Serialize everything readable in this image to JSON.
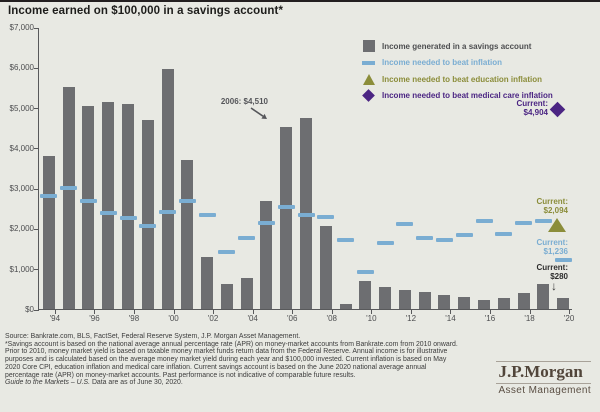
{
  "title": "Income earned on $100,000 in a savings account*",
  "colors": {
    "background": "#e8e9e3",
    "bar": "#6d6e71",
    "inflation": "#7aadd2",
    "education": "#8b8d3a",
    "medical": "#4b2583",
    "axis": "#58595b"
  },
  "legend": [
    {
      "label": "Income generated in a savings account",
      "marker": "square-icon",
      "color": "#6d6e71"
    },
    {
      "label": "Income needed to beat inflation",
      "marker": "dash-icon",
      "color": "#7aadd2"
    },
    {
      "label": "Income needed to beat education inflation",
      "marker": "triangle-icon",
      "color": "#8b8d3a"
    },
    {
      "label": "Income needed to beat medical care inflation",
      "marker": "diamond-icon",
      "color": "#4b2583"
    }
  ],
  "chart_data": {
    "type": "bar",
    "title": "Income earned on $100,000 in a savings account*",
    "x": [
      1994,
      1995,
      1996,
      1997,
      1998,
      1999,
      2000,
      2001,
      2002,
      2003,
      2004,
      2005,
      2006,
      2007,
      2008,
      2009,
      2010,
      2011,
      2012,
      2013,
      2014,
      2015,
      2016,
      2017,
      2018,
      2019,
      2020
    ],
    "x_tick_labels": [
      "'94",
      "'96",
      "'98",
      "'00",
      "'02",
      "'04",
      "'06",
      "'08",
      "'10",
      "'12",
      "'14",
      "'16",
      "'18",
      "'20"
    ],
    "ylim": [
      0,
      7000
    ],
    "y_tick_labels": [
      "$0",
      "$1,000",
      "$2,000",
      "$3,000",
      "$4,000",
      "$5,000",
      "$6,000",
      "$7,000"
    ],
    "grid": false,
    "legend_position": "top-right",
    "series": [
      {
        "name": "Income generated in a savings account",
        "style": "bar",
        "values": [
          3800,
          5500,
          5050,
          5150,
          5100,
          4700,
          5950,
          3700,
          1300,
          620,
          780,
          2670,
          4510,
          4750,
          2050,
          130,
          700,
          550,
          470,
          420,
          360,
          310,
          220,
          270,
          390,
          620,
          280
        ]
      },
      {
        "name": "Income needed to beat inflation",
        "style": "dash",
        "values": [
          2830,
          3030,
          2700,
          2400,
          2280,
          2080,
          2430,
          2700,
          2360,
          1450,
          1780,
          2160,
          2550,
          2360,
          2310,
          1740,
          950,
          1670,
          2130,
          1790,
          1750,
          1860,
          2210,
          1880,
          2160,
          2210,
          1236
        ]
      }
    ],
    "annotations": {
      "peak_2006": {
        "text": "2006: $4,510",
        "year": 2006,
        "value": 4510
      },
      "current_medical": {
        "label": "Current:",
        "value": "$4,904",
        "numeric": 4904
      },
      "current_education": {
        "label": "Current:",
        "value": "$2,094",
        "numeric": 2094
      },
      "current_inflation": {
        "label": "Current:",
        "value": "$1,236",
        "numeric": 1236
      },
      "current_savings": {
        "label": "Current:",
        "value": "$280",
        "numeric": 280
      }
    }
  },
  "footer": {
    "lines": [
      "Source: Bankrate.com, BLS, FactSet, Federal Reserve System, J.P. Morgan Asset Management.",
      "*Savings account is based on the national average annual percentage rate (APR) on money-market accounts from Bankrate.com from 2010 onward.",
      "Prior to 2010, money market yield is based on taxable money market funds return data from the Federal Reserve. Annual income is for illustrative",
      "purposes and is calculated based on the average money market yield during each year and $100,000 invested. Current inflation is based on May",
      "2020 Core CPI, education inflation and medical care inflation. Current savings account is based on the June 2020 national average annual",
      "percentage rate (APR) on money-market accounts. Past performance is not indicative of comparable future results."
    ],
    "gtm_italic": "Guide to the Markets – U.S.",
    "gtm_rest": " Data are as of June 30, 2020."
  },
  "logo": {
    "name": "J.P.Morgan",
    "subtitle": "Asset Management"
  }
}
